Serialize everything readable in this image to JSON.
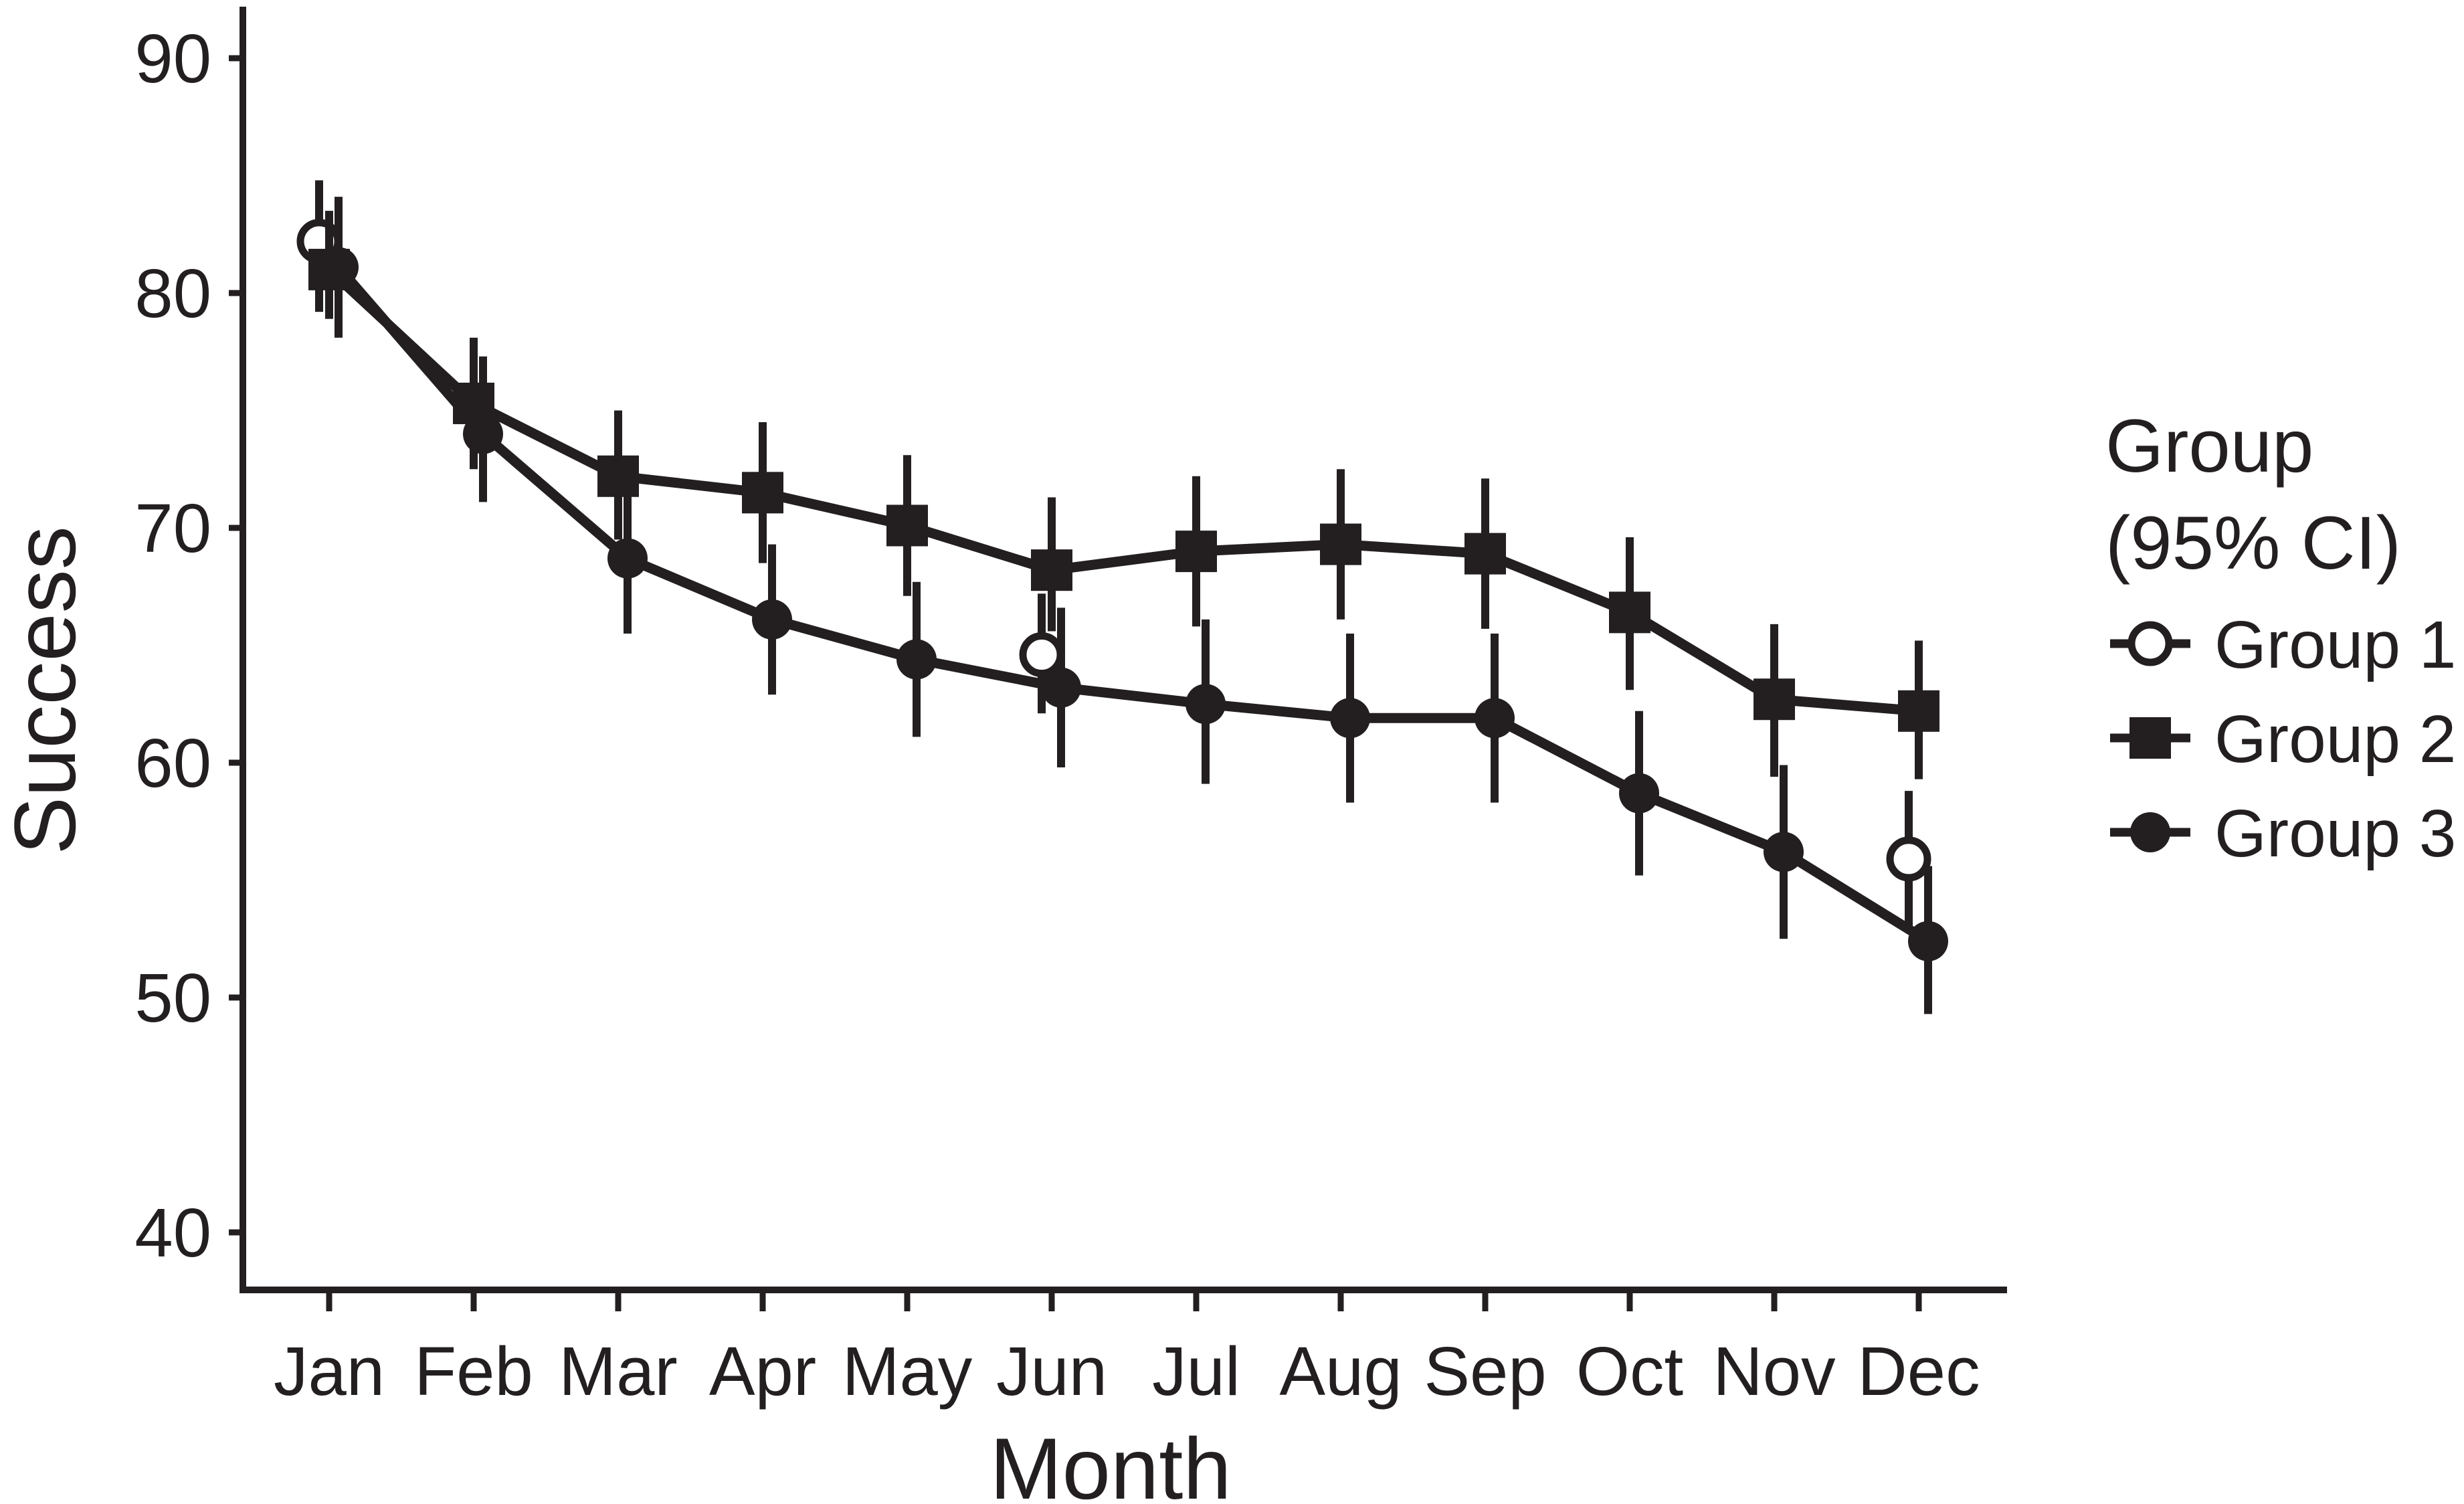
{
  "figure": {
    "ink_color": "#231f20",
    "background_color": "#ffffff"
  },
  "chart_data": {
    "type": "line",
    "title": "",
    "xlabel": "Month",
    "ylabel": "Success",
    "grid": "off",
    "legend_position": "right",
    "x_categories": [
      "Jan",
      "Feb",
      "Mar",
      "Apr",
      "May",
      "Jun",
      "Jul",
      "Aug",
      "Sep",
      "Oct",
      "Nov",
      "Dec"
    ],
    "y_ticks": [
      40,
      50,
      60,
      70,
      80,
      90
    ],
    "ylim": [
      37.5,
      92.2
    ],
    "error_bars": "95% CI, vertical linerange without caps",
    "legend": {
      "title_line1": "Group",
      "title_line2": "(95% CI)",
      "entries": [
        {
          "label": "Group 1",
          "marker": "open-circle-icon"
        },
        {
          "label": "Group 2",
          "marker": "filled-square-icon"
        },
        {
          "label": "Group 3",
          "marker": "filled-circle-icon"
        }
      ]
    },
    "series": [
      {
        "name": "Group 1",
        "marker": "open-circle",
        "connected": false,
        "x": [
          "Jan",
          "Jun",
          "Dec"
        ],
        "values": [
          82.2,
          64.6,
          55.9
        ],
        "ci_low": [
          79.2,
          62.1,
          53.0
        ],
        "ci_high": [
          84.8,
          67.2,
          58.8
        ]
      },
      {
        "name": "Group 2",
        "marker": "filled-square",
        "connected": true,
        "x": [
          "Jan",
          "Feb",
          "Mar",
          "Apr",
          "May",
          "Jun",
          "Jul",
          "Aug",
          "Sep",
          "Oct",
          "Nov",
          "Dec"
        ],
        "values": [
          81.0,
          75.3,
          72.2,
          71.5,
          70.1,
          68.2,
          69.0,
          69.3,
          68.9,
          66.4,
          62.7,
          62.2
        ],
        "ci_low": [
          78.9,
          72.5,
          69.5,
          68.5,
          67.1,
          65.6,
          65.8,
          66.1,
          65.7,
          63.1,
          59.4,
          59.3
        ],
        "ci_high": [
          83.5,
          78.1,
          75.0,
          74.5,
          73.1,
          71.3,
          72.2,
          72.5,
          72.1,
          69.6,
          65.9,
          65.2
        ]
      },
      {
        "name": "Group 3",
        "marker": "filled-circle",
        "connected": true,
        "x": [
          "Jan",
          "Feb",
          "Mar",
          "Apr",
          "May",
          "Jun",
          "Jul",
          "Aug",
          "Sep",
          "Oct",
          "Nov",
          "Dec"
        ],
        "values": [
          81.1,
          74.0,
          68.7,
          66.1,
          64.4,
          63.2,
          62.5,
          61.9,
          61.9,
          58.7,
          56.2,
          52.4
        ],
        "ci_low": [
          78.1,
          71.1,
          65.5,
          62.9,
          61.1,
          59.8,
          59.1,
          58.3,
          58.3,
          55.2,
          52.5,
          49.3
        ],
        "ci_high": [
          84.1,
          77.3,
          71.9,
          69.3,
          67.7,
          66.6,
          66.1,
          65.5,
          65.5,
          62.2,
          59.9,
          55.6
        ]
      }
    ]
  }
}
